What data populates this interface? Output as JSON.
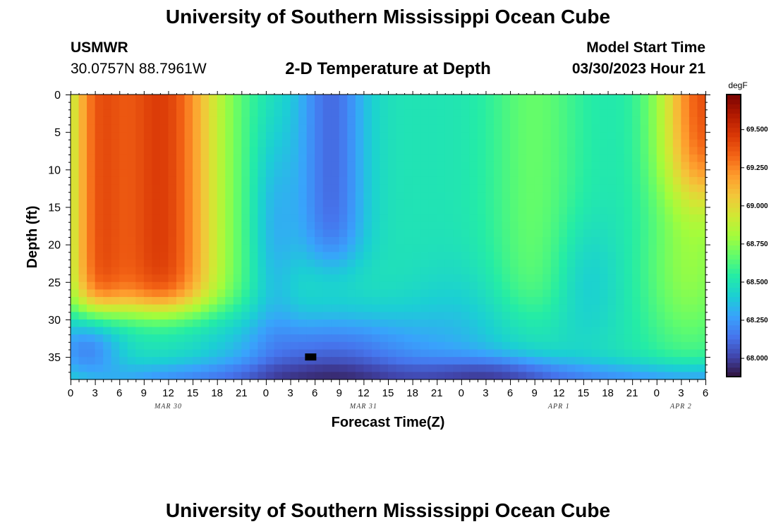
{
  "header": {
    "title": "University of Southern Mississippi Ocean Cube",
    "station": "USMWR",
    "coords": "30.0757N  88.7961W",
    "subtitle": "2-D Temperature at Depth",
    "model_start_label": "Model Start Time",
    "model_start_value": "03/30/2023 Hour 21"
  },
  "footer": {
    "title": "University of Southern Mississippi Ocean Cube"
  },
  "chart_data": {
    "type": "heatmap",
    "title": "2-D Temperature at Depth",
    "xlabel": "Forecast Time(Z)",
    "ylabel": "Depth (ft)",
    "colorbar_unit": "degF",
    "x_tick_labels": [
      "0",
      "3",
      "6",
      "9",
      "12",
      "15",
      "18",
      "21",
      "0",
      "3",
      "6",
      "9",
      "12",
      "15",
      "18",
      "21",
      "0",
      "3",
      "6",
      "9",
      "12",
      "15",
      "18",
      "21",
      "0",
      "3",
      "6"
    ],
    "x_range_hours": [
      0,
      78
    ],
    "date_labels": [
      {
        "label": "MAR 30",
        "hour": 12
      },
      {
        "label": "MAR 31",
        "hour": 36
      },
      {
        "label": "APR 1",
        "hour": 60
      },
      {
        "label": "APR 2",
        "hour": 75
      }
    ],
    "y_ticks": [
      0,
      5,
      10,
      15,
      20,
      25,
      30,
      35
    ],
    "y_tick_labels": [
      "0",
      "5",
      "10",
      "15",
      "20",
      "25",
      "30",
      "35"
    ],
    "ylim": [
      0,
      38
    ],
    "colorbar_ticks": [
      68.0,
      68.25,
      68.5,
      68.75,
      69.0,
      69.25,
      69.5
    ],
    "colorbar_tick_labels": [
      "68.000",
      "68.250",
      "68.500",
      "68.750",
      "69.000",
      "69.250",
      "69.500"
    ],
    "colorbar_range": [
      67.88,
      69.73
    ],
    "grid": false,
    "colormap": [
      "#30123b",
      "#4145ab",
      "#4675ed",
      "#39a2fc",
      "#1bcfd4",
      "#24eca6",
      "#61fc6c",
      "#a4fc3b",
      "#d1e834",
      "#f3c63a",
      "#fe9b2d",
      "#f36315",
      "#d93806",
      "#b11901",
      "#7a0402"
    ],
    "marker": {
      "hour": 29.5,
      "depth": 35
    }
  }
}
